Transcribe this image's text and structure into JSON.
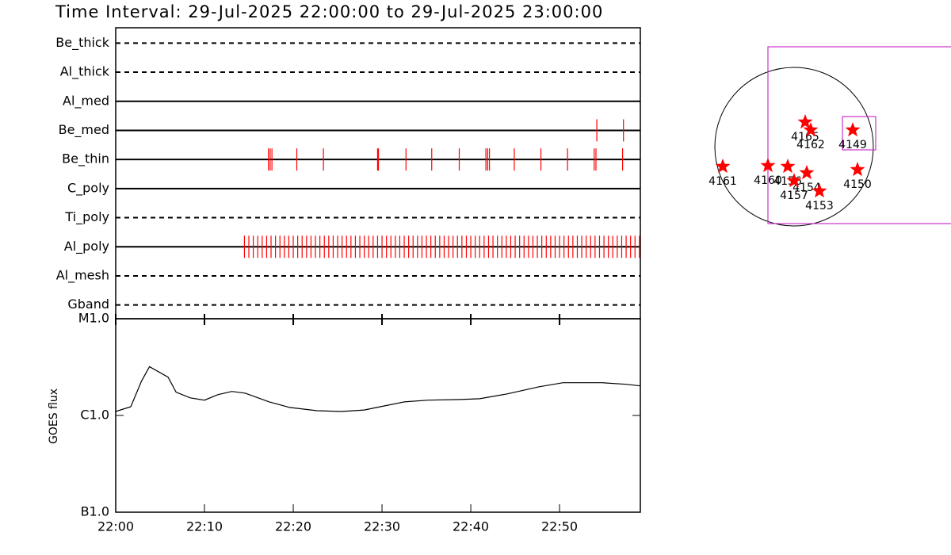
{
  "header": {
    "title": "Time Interval: 29-Jul-2025 22:00:00 to 29-Jul-2025 23:00:00"
  },
  "chart_data": [
    {
      "type": "event",
      "xlim": [
        0,
        59.1
      ],
      "color": "#ff0000",
      "rows": [
        {
          "name": "Be_thick",
          "line": "dashed",
          "events": []
        },
        {
          "name": "Al_thick",
          "line": "dashed",
          "events": []
        },
        {
          "name": "Al_med",
          "line": "solid",
          "events": []
        },
        {
          "name": "Be_med",
          "line": "solid",
          "events": [
            54.2,
            57.2
          ]
        },
        {
          "name": "Be_thin",
          "line": "solid",
          "events": [
            17.2,
            17.4,
            17.6,
            20.4,
            23.4,
            29.5,
            29.6,
            32.7,
            35.6,
            38.7,
            41.7,
            41.9,
            42.1,
            44.9,
            47.9,
            50.9,
            53.9,
            54.1,
            57.1
          ]
        },
        {
          "name": "C_poly",
          "line": "solid",
          "events": []
        },
        {
          "name": "Ti_poly",
          "line": "dashed",
          "events": []
        },
        {
          "name": "Al_poly",
          "line": "solid",
          "events": [
            14.5,
            15.0,
            15.5,
            16.0,
            16.5,
            17.0,
            17.5,
            18.0,
            18.5,
            19.0,
            19.5,
            20.0,
            20.5,
            21.0,
            21.5,
            22.0,
            22.5,
            23.0,
            23.5,
            24.0,
            24.5,
            25.0,
            25.5,
            26.0,
            26.5,
            27.0,
            27.5,
            28.0,
            28.5,
            29.0,
            29.5,
            30.0,
            30.5,
            31.0,
            31.5,
            32.0,
            32.5,
            33.0,
            33.5,
            34.0,
            34.5,
            35.0,
            35.5,
            36.0,
            36.5,
            37.0,
            37.5,
            38.0,
            38.5,
            39.0,
            39.5,
            40.0,
            40.5,
            41.0,
            41.5,
            42.0,
            42.5,
            43.0,
            43.5,
            44.0,
            44.5,
            45.0,
            45.5,
            46.0,
            46.5,
            47.0,
            47.5,
            48.0,
            48.5,
            49.0,
            49.5,
            50.0,
            50.5,
            51.0,
            51.5,
            52.0,
            52.5,
            53.0,
            53.5,
            54.0,
            54.5,
            55.0,
            55.5,
            56.0,
            56.5,
            57.0,
            57.5,
            58.0,
            58.5,
            59.0
          ]
        },
        {
          "name": "Al_mesh",
          "line": "dashed",
          "events": []
        },
        {
          "name": "Gband",
          "line": "dashed",
          "events": []
        }
      ]
    },
    {
      "type": "line",
      "ylabel": "GOES flux",
      "log": true,
      "color": "#000000",
      "x": [
        0,
        1.7,
        2.9,
        3.8,
        5.9,
        6.8,
        8.4,
        10.0,
        11.5,
        13.1,
        14.6,
        17.3,
        19.6,
        22.7,
        25.4,
        28.0,
        29.8,
        32.5,
        35.2,
        38.8,
        41.0,
        44.1,
        47.7,
        50.4,
        54.8,
        57.5,
        59.1
      ],
      "values": [
        1.1e-06,
        1.23e-06,
        2.26e-06,
        3.19e-06,
        2.49e-06,
        1.74e-06,
        1.52e-06,
        1.44e-06,
        1.64e-06,
        1.77e-06,
        1.7e-06,
        1.38e-06,
        1.21e-06,
        1.12e-06,
        1.1e-06,
        1.14e-06,
        1.23e-06,
        1.38e-06,
        1.44e-06,
        1.46e-06,
        1.49e-06,
        1.67e-06,
        1.98e-06,
        2.18e-06,
        2.18e-06,
        2.1e-06,
        2.02e-06
      ],
      "xlim": [
        0,
        59.1
      ],
      "xticks": [
        {
          "value": 0,
          "label": "22:00"
        },
        {
          "value": 10,
          "label": "22:10"
        },
        {
          "value": 20,
          "label": "22:20"
        },
        {
          "value": 30,
          "label": "22:30"
        },
        {
          "value": 40,
          "label": "22:40"
        },
        {
          "value": 50,
          "label": "22:50"
        }
      ],
      "ylim": [
        1e-07,
        1e-05
      ],
      "yticks": [
        {
          "value": 1e-07,
          "label": "B1.0"
        },
        {
          "value": 1e-06,
          "label": "C1.0"
        },
        {
          "value": 1e-05,
          "label": "M1.0"
        }
      ]
    },
    {
      "type": "disk",
      "color": "#ff0000",
      "regions": [
        {
          "name": "4165",
          "x": 0.14,
          "y": 0.31
        },
        {
          "name": "4162",
          "x": 0.21,
          "y": 0.21
        },
        {
          "name": "4149",
          "x": 0.74,
          "y": 0.21
        },
        {
          "name": "4161",
          "x": -0.9,
          "y": -0.25
        },
        {
          "name": "4160",
          "x": -0.33,
          "y": -0.24
        },
        {
          "name": "4156",
          "x": -0.08,
          "y": -0.25
        },
        {
          "name": "4154",
          "x": 0.16,
          "y": -0.33
        },
        {
          "name": "4157",
          "x": 0.0,
          "y": -0.43
        },
        {
          "name": "4153",
          "x": 0.32,
          "y": -0.56
        },
        {
          "name": "4150",
          "x": 0.8,
          "y": -0.29
        }
      ]
    }
  ]
}
